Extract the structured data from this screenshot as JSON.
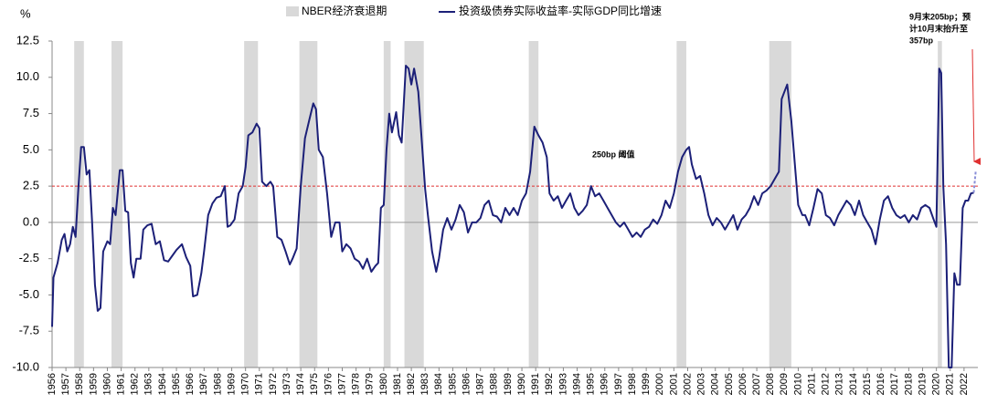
{
  "chart_data": {
    "type": "line",
    "y_label": "%",
    "xlim": [
      1956,
      2023
    ],
    "ylim": [
      -10,
      12.5
    ],
    "yticks": [
      {
        "value": -10,
        "label": "-10.0"
      },
      -7.5,
      {
        "value": -5,
        "label": "-5.0"
      },
      -2.5,
      {
        "value": 0,
        "label": "0.0"
      },
      2.5,
      {
        "value": 5,
        "label": "5.0"
      },
      7.5,
      {
        "value": 10,
        "label": "10.0"
      },
      12.5
    ],
    "xticks": [
      1956,
      1957,
      1958,
      1959,
      1960,
      1961,
      1962,
      1963,
      1964,
      1965,
      1966,
      1967,
      1968,
      1969,
      1970,
      1971,
      1972,
      1973,
      1974,
      1975,
      1976,
      1977,
      1978,
      1979,
      1980,
      1981,
      1982,
      1983,
      1984,
      1985,
      1986,
      1987,
      1988,
      1989,
      1990,
      1991,
      1992,
      1993,
      1994,
      1995,
      1996,
      1997,
      1998,
      1999,
      2000,
      2001,
      2002,
      2003,
      2004,
      2005,
      2006,
      2007,
      2008,
      2009,
      2010,
      2011,
      2012,
      2013,
      2014,
      2015,
      2016,
      2017,
      2018,
      2019,
      2020,
      2021,
      2022
    ],
    "recessions": {
      "name": "NBER经济衰退期",
      "color": "#d9d9d9",
      "periods": [
        [
          1957.6,
          1958.3
        ],
        [
          1960.3,
          1961.1
        ],
        [
          1969.9,
          1970.9
        ],
        [
          1973.9,
          1975.2
        ],
        [
          1980.0,
          1980.5
        ],
        [
          1981.5,
          1982.9
        ],
        [
          1990.5,
          1991.2
        ],
        [
          2001.2,
          2001.9
        ],
        [
          2007.9,
          2009.5
        ],
        [
          2020.1,
          2020.4
        ]
      ]
    },
    "series": [
      {
        "name": "投资级债券实际收益率-实际GDP同比增速",
        "color": "#1c2078",
        "x": [
          1956.0,
          1956.1,
          1956.4,
          1956.7,
          1956.9,
          1957.1,
          1957.3,
          1957.5,
          1957.7,
          1957.9,
          1958.1,
          1958.3,
          1958.5,
          1958.7,
          1958.9,
          1959.1,
          1959.3,
          1959.5,
          1959.7,
          1960.0,
          1960.2,
          1960.4,
          1960.6,
          1960.9,
          1961.1,
          1961.3,
          1961.5,
          1961.7,
          1961.9,
          1962.1,
          1962.4,
          1962.6,
          1962.9,
          1963.2,
          1963.5,
          1963.8,
          1964.1,
          1964.4,
          1964.7,
          1965.0,
          1965.4,
          1965.7,
          1966.0,
          1966.2,
          1966.5,
          1966.8,
          1967.0,
          1967.3,
          1967.6,
          1967.9,
          1968.2,
          1968.5,
          1968.7,
          1968.9,
          1969.2,
          1969.5,
          1969.8,
          1970.0,
          1970.2,
          1970.5,
          1970.8,
          1971.0,
          1971.2,
          1971.5,
          1971.8,
          1972.0,
          1972.3,
          1972.6,
          1972.9,
          1973.2,
          1973.4,
          1973.7,
          1974.0,
          1974.3,
          1974.6,
          1974.9,
          1975.1,
          1975.3,
          1975.6,
          1975.9,
          1976.2,
          1976.5,
          1976.8,
          1977.0,
          1977.3,
          1977.6,
          1977.9,
          1978.2,
          1978.5,
          1978.8,
          1979.1,
          1979.4,
          1979.6,
          1979.8,
          1980.0,
          1980.2,
          1980.4,
          1980.6,
          1980.9,
          1981.1,
          1981.3,
          1981.6,
          1981.8,
          1982.0,
          1982.2,
          1982.5,
          1982.8,
          1983.0,
          1983.2,
          1983.5,
          1983.8,
          1984.0,
          1984.3,
          1984.6,
          1984.9,
          1985.2,
          1985.5,
          1985.8,
          1986.1,
          1986.4,
          1986.7,
          1987.0,
          1987.3,
          1987.6,
          1987.9,
          1988.2,
          1988.5,
          1988.8,
          1989.1,
          1989.4,
          1989.7,
          1990.0,
          1990.3,
          1990.6,
          1990.9,
          1991.2,
          1991.5,
          1991.8,
          1992.0,
          1992.3,
          1992.6,
          1992.9,
          1993.2,
          1993.5,
          1993.8,
          1994.1,
          1994.4,
          1994.7,
          1995.0,
          1995.3,
          1995.6,
          1995.9,
          1996.2,
          1996.5,
          1996.8,
          1997.1,
          1997.4,
          1997.7,
          1998.0,
          1998.3,
          1998.6,
          1998.9,
          1999.2,
          1999.5,
          1999.8,
          2000.1,
          2000.4,
          2000.7,
          2001.0,
          2001.3,
          2001.6,
          2001.9,
          2002.1,
          2002.3,
          2002.6,
          2002.9,
          2003.2,
          2003.5,
          2003.8,
          2004.1,
          2004.4,
          2004.7,
          2005.0,
          2005.3,
          2005.6,
          2005.9,
          2006.2,
          2006.5,
          2006.8,
          2007.1,
          2007.4,
          2007.7,
          2008.0,
          2008.3,
          2008.6,
          2008.8,
          2009.0,
          2009.2,
          2009.5,
          2009.8,
          2010.0,
          2010.3,
          2010.5,
          2010.8,
          2011.1,
          2011.4,
          2011.7,
          2012.0,
          2012.3,
          2012.6,
          2012.9,
          2013.2,
          2013.5,
          2013.8,
          2014.1,
          2014.4,
          2014.7,
          2015.0,
          2015.3,
          2015.6,
          2015.9,
          2016.2,
          2016.5,
          2016.8,
          2017.1,
          2017.4,
          2017.7,
          2018.0,
          2018.3,
          2018.6,
          2018.9,
          2019.2,
          2019.5,
          2019.8,
          2020.0,
          2020.2,
          2020.35,
          2020.5,
          2020.7,
          2020.9,
          2021.1,
          2021.3,
          2021.5,
          2021.7,
          2021.9,
          2022.1,
          2022.3,
          2022.5,
          2022.7
        ],
        "values": [
          -7.2,
          -3.8,
          -2.8,
          -1.2,
          -0.8,
          -2.0,
          -1.5,
          -0.3,
          -1.0,
          2.3,
          5.2,
          5.2,
          3.3,
          3.6,
          0.0,
          -4.3,
          -6.1,
          -5.9,
          -2.0,
          -1.3,
          -1.5,
          1.0,
          0.5,
          3.6,
          3.6,
          0.8,
          0.7,
          -2.8,
          -3.8,
          -2.5,
          -2.5,
          -0.5,
          -0.2,
          -0.1,
          -1.5,
          -1.3,
          -2.6,
          -2.7,
          -2.3,
          -1.9,
          -1.5,
          -2.4,
          -3.0,
          -5.1,
          -5.0,
          -3.5,
          -2.0,
          0.5,
          1.3,
          1.7,
          1.8,
          2.5,
          -0.3,
          -0.2,
          0.2,
          2.0,
          2.5,
          3.8,
          6.0,
          6.2,
          6.8,
          6.5,
          2.8,
          2.5,
          2.8,
          2.5,
          -1.0,
          -1.2,
          -2.0,
          -2.9,
          -2.5,
          -1.8,
          2.5,
          5.8,
          7.0,
          8.2,
          7.8,
          5.0,
          4.5,
          2.0,
          -1.0,
          0.0,
          0.0,
          -2.0,
          -1.5,
          -1.8,
          -2.5,
          -2.7,
          -3.2,
          -2.5,
          -3.4,
          -3.0,
          -2.8,
          1.0,
          1.2,
          5.0,
          7.5,
          6.2,
          7.6,
          6.0,
          5.5,
          10.8,
          10.6,
          9.5,
          10.6,
          9.0,
          5.0,
          2.3,
          0.5,
          -2.0,
          -3.4,
          -2.5,
          -0.5,
          0.3,
          -0.5,
          0.2,
          1.2,
          0.7,
          -0.7,
          0.0,
          0.0,
          0.3,
          1.2,
          1.5,
          0.5,
          0.4,
          0.0,
          1.0,
          0.5,
          1.0,
          0.5,
          1.5,
          2.0,
          3.5,
          6.6,
          6.0,
          5.5,
          4.5,
          2.0,
          1.5,
          1.8,
          1.0,
          1.5,
          2.0,
          1.0,
          0.5,
          0.8,
          1.2,
          2.5,
          1.8,
          2.0,
          1.5,
          1.0,
          0.5,
          0.0,
          -0.3,
          0.0,
          -0.5,
          -1.0,
          -0.7,
          -1.0,
          -0.5,
          -0.3,
          0.2,
          -0.1,
          0.5,
          1.5,
          1.0,
          2.0,
          3.5,
          4.5,
          5.0,
          5.2,
          4.0,
          3.0,
          3.2,
          2.0,
          0.5,
          -0.2,
          0.3,
          0.0,
          -0.5,
          0.0,
          0.5,
          -0.5,
          0.2,
          0.5,
          1.0,
          1.8,
          1.2,
          2.0,
          2.2,
          2.5,
          3.0,
          3.5,
          8.5,
          9.0,
          9.5,
          7.0,
          3.5,
          1.2,
          0.5,
          0.5,
          -0.2,
          1.0,
          2.3,
          2.0,
          0.5,
          0.3,
          -0.2,
          0.5,
          1.0,
          1.5,
          1.2,
          0.5,
          1.5,
          0.5,
          0.0,
          -0.5,
          -1.5,
          0.2,
          1.5,
          1.8,
          1.0,
          0.5,
          0.3,
          0.5,
          0.0,
          0.5,
          0.2,
          1.0,
          1.2,
          1.0,
          0.2,
          -0.3,
          10.6,
          10.3,
          2.5,
          -1.5,
          -10.0,
          -10.0,
          -3.5,
          -4.3,
          -4.3,
          1.0,
          1.5,
          1.5,
          2.0,
          2.05
        ]
      }
    ],
    "projection": {
      "color": "#8a8fd8",
      "x": [
        2022.7,
        2022.85
      ],
      "values": [
        2.05,
        3.57
      ]
    },
    "threshold": {
      "value": 2.5,
      "label": "250bp 阈值",
      "color": "#e03030"
    },
    "annotation": [
      "9月末205bp；预",
      "计10月末抬升至",
      "357bp"
    ]
  }
}
